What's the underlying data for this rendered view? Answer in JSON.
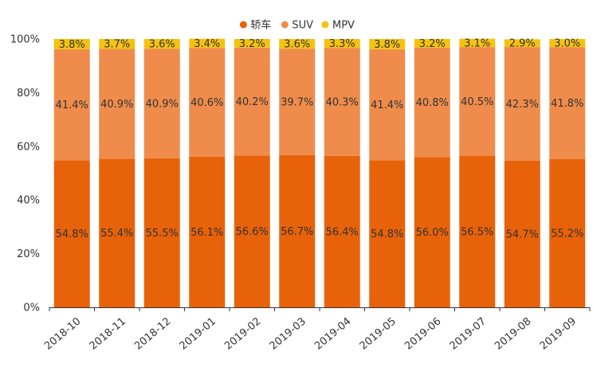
{
  "chart_data": {
    "type": "bar",
    "stacked": true,
    "categories": [
      "2018-10",
      "2018-11",
      "2018-12",
      "2019-01",
      "2019-02",
      "2019-03",
      "2019-04",
      "2019-05",
      "2019-06",
      "2019-07",
      "2019-08",
      "2019-09"
    ],
    "series": [
      {
        "name": "轿车",
        "color": "#e8620a",
        "values": [
          54.8,
          55.4,
          55.5,
          56.1,
          56.6,
          56.7,
          56.4,
          54.8,
          56.0,
          56.5,
          54.7,
          55.2
        ],
        "labels": [
          "54.8%",
          "55.4%",
          "55.5%",
          "56.1%",
          "56.6%",
          "56.7%",
          "56.4%",
          "54.8%",
          "56.0%",
          "56.5%",
          "54.7%",
          "55.2%"
        ]
      },
      {
        "name": "SUV",
        "color": "#ef8c4b",
        "values": [
          41.4,
          40.9,
          40.9,
          40.6,
          40.2,
          39.7,
          40.3,
          41.4,
          40.8,
          40.5,
          42.3,
          41.8
        ],
        "labels": [
          "41.4%",
          "40.9%",
          "40.9%",
          "40.6%",
          "40.2%",
          "39.7%",
          "40.3%",
          "41.4%",
          "40.8%",
          "40.5%",
          "42.3%",
          "41.8%"
        ]
      },
      {
        "name": "MPV",
        "color": "#f5c211",
        "values": [
          3.8,
          3.7,
          3.6,
          3.4,
          3.2,
          3.6,
          3.3,
          3.8,
          3.2,
          3.1,
          2.9,
          3.0
        ],
        "labels": [
          "3.8%",
          "3.7%",
          "3.6%",
          "3.4%",
          "3.2%",
          "3.6%",
          "3.3%",
          "3.8%",
          "3.2%",
          "3.1%",
          "2.9%",
          "3.0%"
        ]
      }
    ],
    "yticks": [
      0,
      20,
      40,
      60,
      80,
      100
    ],
    "ytick_labels": [
      "0%",
      "20%",
      "40%",
      "60%",
      "80%",
      "100%"
    ],
    "ylim": [
      0,
      100
    ],
    "title": "",
    "xlabel": "",
    "ylabel": "",
    "grid": false,
    "legend_position": "top-center"
  }
}
